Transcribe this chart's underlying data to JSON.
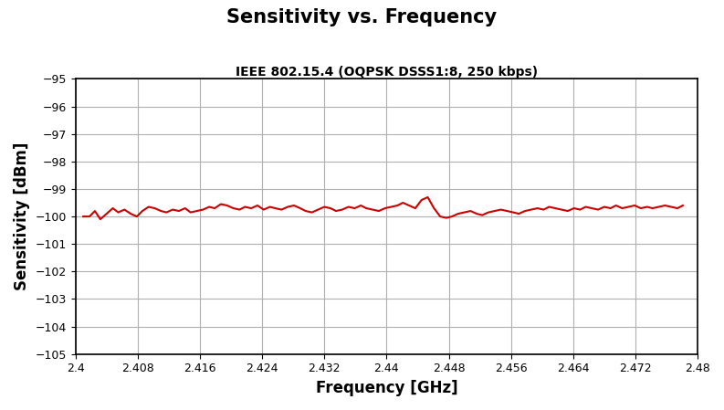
{
  "title": "Sensitivity vs. Frequency",
  "subtitle": "IEEE 802.15.4 (OQPSK DSSS1:8, 250 kbps)",
  "xlabel": "Frequency [GHz]",
  "ylabel": "Sensitivity [dBm]",
  "xlim": [
    2.4,
    2.48
  ],
  "ylim": [
    -105,
    -95
  ],
  "xticks": [
    2.4,
    2.408,
    2.416,
    2.424,
    2.432,
    2.44,
    2.448,
    2.456,
    2.464,
    2.472,
    2.48
  ],
  "xtick_labels": [
    "2.4",
    "2.408",
    "2.416",
    "2.424",
    "2.432",
    "2.44",
    "2.448",
    "2.456",
    "2.464",
    "2.472",
    "2.48"
  ],
  "yticks": [
    -105,
    -104,
    -103,
    -102,
    -101,
    -100,
    -99,
    -98,
    -97,
    -96,
    -95
  ],
  "line_color": "#cc0000",
  "line_width": 1.5,
  "background_color": "#ffffff",
  "grid_color": "#b0b0b0",
  "title_fontsize": 15,
  "subtitle_fontsize": 10,
  "xlabel_fontsize": 12,
  "ylabel_fontsize": 12,
  "tick_labelsize": 9,
  "x": [
    2.401,
    2.4018,
    2.4025,
    2.4032,
    2.404,
    2.4048,
    2.4055,
    2.4063,
    2.4071,
    2.4079,
    2.4086,
    2.4094,
    2.4102,
    2.411,
    2.4117,
    2.4125,
    2.4133,
    2.4141,
    2.4148,
    2.4156,
    2.4164,
    2.4172,
    2.4179,
    2.4187,
    2.4195,
    2.4203,
    2.4211,
    2.4218,
    2.4226,
    2.4234,
    2.4242,
    2.425,
    2.4257,
    2.4265,
    2.4273,
    2.4281,
    2.4289,
    2.4296,
    2.4304,
    2.4312,
    2.432,
    2.4328,
    2.4335,
    2.4343,
    2.4351,
    2.4359,
    2.4367,
    2.4374,
    2.4382,
    2.439,
    2.4398,
    2.4406,
    2.4414,
    2.4421,
    2.4429,
    2.4437,
    2.4445,
    2.4453,
    2.4461,
    2.4469,
    2.4477,
    2.4484,
    2.4492,
    2.45,
    2.4508,
    2.4516,
    2.4523,
    2.4531,
    2.4539,
    2.4547,
    2.4555,
    2.4563,
    2.457,
    2.4578,
    2.4586,
    2.4594,
    2.4602,
    2.4609,
    2.4617,
    2.4625,
    2.4633,
    2.4641,
    2.4649,
    2.4656,
    2.4664,
    2.4672,
    2.468,
    2.4688,
    2.4695,
    2.4703,
    2.4711,
    2.4719,
    2.4727,
    2.4735,
    2.4742,
    2.475,
    2.4758,
    2.4766,
    2.4774,
    2.4781
  ],
  "y": [
    -100.0,
    -100.0,
    -99.8,
    -100.1,
    -99.9,
    -99.7,
    -99.85,
    -99.75,
    -99.9,
    -100.0,
    -99.8,
    -99.65,
    -99.7,
    -99.8,
    -99.85,
    -99.75,
    -99.8,
    -99.7,
    -99.85,
    -99.8,
    -99.75,
    -99.65,
    -99.7,
    -99.55,
    -99.6,
    -99.7,
    -99.75,
    -99.65,
    -99.7,
    -99.6,
    -99.75,
    -99.65,
    -99.7,
    -99.75,
    -99.65,
    -99.6,
    -99.7,
    -99.8,
    -99.85,
    -99.75,
    -99.65,
    -99.7,
    -99.8,
    -99.75,
    -99.65,
    -99.7,
    -99.6,
    -99.7,
    -99.75,
    -99.8,
    -99.7,
    -99.65,
    -99.6,
    -99.5,
    -99.6,
    -99.7,
    -99.4,
    -99.3,
    -99.7,
    -100.0,
    -100.05,
    -100.0,
    -99.9,
    -99.85,
    -99.8,
    -99.9,
    -99.95,
    -99.85,
    -99.8,
    -99.75,
    -99.8,
    -99.85,
    -99.9,
    -99.8,
    -99.75,
    -99.7,
    -99.75,
    -99.65,
    -99.7,
    -99.75,
    -99.8,
    -99.7,
    -99.75,
    -99.65,
    -99.7,
    -99.75,
    -99.65,
    -99.7,
    -99.6,
    -99.7,
    -99.65,
    -99.6,
    -99.7,
    -99.65,
    -99.7,
    -99.65,
    -99.6,
    -99.65,
    -99.7,
    -99.6
  ]
}
